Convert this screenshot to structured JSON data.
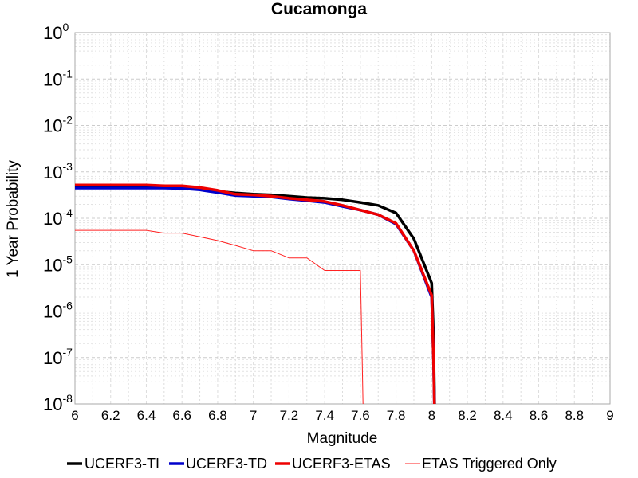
{
  "chart_data": {
    "type": "line",
    "title": "Cucamonga",
    "xlabel": "Magnitude",
    "ylabel": "1 Year Probability",
    "xlim": [
      6,
      9
    ],
    "ylim": [
      1e-08,
      1
    ],
    "yscale": "log",
    "grid": true,
    "legend_position": "bottom",
    "xticks": [
      "6",
      "6.2",
      "6.4",
      "6.6",
      "6.8",
      "7",
      "7.2",
      "7.4",
      "7.6",
      "7.8",
      "8",
      "8.2",
      "8.4",
      "8.6",
      "8.8",
      "9"
    ],
    "yticks": [
      {
        "base": "10",
        "exp": "0"
      },
      {
        "base": "10",
        "exp": "-1"
      },
      {
        "base": "10",
        "exp": "-2"
      },
      {
        "base": "10",
        "exp": "-3"
      },
      {
        "base": "10",
        "exp": "-4"
      },
      {
        "base": "10",
        "exp": "-5"
      },
      {
        "base": "10",
        "exp": "-6"
      },
      {
        "base": "10",
        "exp": "-7"
      },
      {
        "base": "10",
        "exp": "-8"
      }
    ],
    "series": [
      {
        "name": "UCERF3-TI",
        "color": "#000000",
        "width": 3.5,
        "x": [
          6.0,
          6.1,
          6.2,
          6.3,
          6.4,
          6.5,
          6.6,
          6.7,
          6.8,
          6.9,
          7.0,
          7.1,
          7.2,
          7.3,
          7.4,
          7.5,
          7.6,
          7.7,
          7.8,
          7.9,
          8.0,
          8.01,
          8.02
        ],
        "y": [
          0.00048,
          0.00048,
          0.00048,
          0.00048,
          0.00048,
          0.00047,
          0.00046,
          0.00043,
          0.00038,
          0.00035,
          0.00033,
          0.00032,
          0.0003,
          0.00028,
          0.00027,
          0.00025,
          0.00022,
          0.00019,
          0.00013,
          3.6e-05,
          4e-06,
          3e-07,
          1e-09
        ]
      },
      {
        "name": "UCERF3-TD",
        "color": "#0000cc",
        "width": 3.5,
        "x": [
          6.0,
          6.1,
          6.2,
          6.3,
          6.4,
          6.5,
          6.6,
          6.7,
          6.8,
          6.9,
          7.0,
          7.1,
          7.2,
          7.3,
          7.4,
          7.5,
          7.6,
          7.7,
          7.8,
          7.9,
          8.0,
          8.01,
          8.02
        ],
        "y": [
          0.00045,
          0.00045,
          0.00045,
          0.00045,
          0.00045,
          0.00045,
          0.00044,
          0.00041,
          0.00036,
          0.00031,
          0.0003,
          0.00029,
          0.00026,
          0.00024,
          0.00022,
          0.00018,
          0.00015,
          0.00012,
          7.5e-05,
          2e-05,
          2e-06,
          1e-07,
          1e-09
        ]
      },
      {
        "name": "UCERF3-ETAS",
        "color": "#ee0000",
        "width": 3.5,
        "x": [
          6.0,
          6.1,
          6.2,
          6.3,
          6.4,
          6.5,
          6.6,
          6.7,
          6.8,
          6.9,
          7.0,
          7.1,
          7.2,
          7.3,
          7.4,
          7.5,
          7.6,
          7.7,
          7.8,
          7.9,
          8.0,
          8.01,
          8.02
        ],
        "y": [
          0.00052,
          0.00052,
          0.00052,
          0.00052,
          0.00052,
          0.0005,
          0.0005,
          0.00046,
          0.0004,
          0.00033,
          0.00032,
          0.0003,
          0.00027,
          0.00025,
          0.00023,
          0.00019,
          0.00015,
          0.00012,
          7.8e-05,
          2e-05,
          2.2e-06,
          1e-07,
          1e-09
        ]
      },
      {
        "name": "ETAS Triggered Only",
        "color": "#ff2222",
        "width": 1,
        "x": [
          6.0,
          6.1,
          6.2,
          6.3,
          6.4,
          6.5,
          6.6,
          6.7,
          6.8,
          6.9,
          7.0,
          7.1,
          7.2,
          7.3,
          7.4,
          7.5,
          7.6,
          7.61,
          7.62
        ],
        "y": [
          5.5e-05,
          5.5e-05,
          5.5e-05,
          5.5e-05,
          5.5e-05,
          4.8e-05,
          4.8e-05,
          4e-05,
          3.3e-05,
          2.6e-05,
          2e-05,
          2e-05,
          1.4e-05,
          1.4e-05,
          7.5e-06,
          7.5e-06,
          7.5e-06,
          1e-07,
          1e-09
        ]
      }
    ]
  }
}
